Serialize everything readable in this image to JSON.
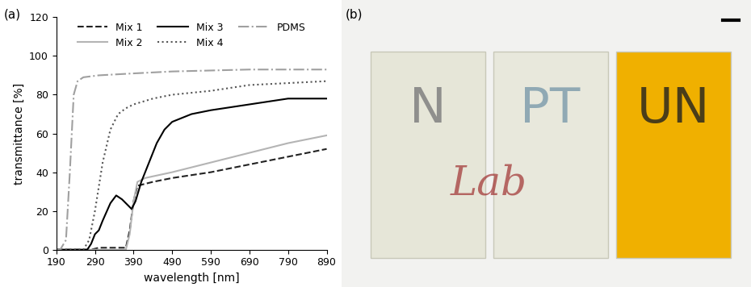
{
  "chart_data": {
    "type": "line",
    "panel_label": "(a)",
    "x_label": "wavelength [nm]",
    "y_label": "transmittance [%]",
    "xlim": [
      190,
      890
    ],
    "xticks": [
      190,
      290,
      390,
      490,
      590,
      690,
      790,
      890
    ],
    "ylim": [
      0,
      120
    ],
    "yticks": [
      0,
      20,
      40,
      60,
      80,
      100,
      120
    ],
    "legend": "upper center",
    "series": [
      {
        "name": "Mix 1",
        "color": "#222222",
        "line_style": "dashed",
        "x": [
          190,
          280,
          300,
          340,
          370,
          380,
          390,
          400,
          440,
          490,
          590,
          690,
          790,
          890
        ],
        "values": [
          0,
          0,
          1,
          1,
          1,
          10,
          25,
          33,
          35,
          37,
          40,
          44,
          48,
          52
        ]
      },
      {
        "name": "Mix 2",
        "color": "#b4b4b4",
        "line_style": "solid",
        "x": [
          190,
          370,
          380,
          390,
          400,
          420,
          490,
          590,
          690,
          790,
          890
        ],
        "values": [
          0,
          0,
          8,
          25,
          35,
          37,
          40,
          45,
          50,
          55,
          59
        ]
      },
      {
        "name": "Mix 3",
        "color": "#000000",
        "line_style": "solid",
        "x": [
          190,
          270,
          280,
          290,
          300,
          310,
          330,
          345,
          360,
          375,
          385,
          395,
          410,
          430,
          450,
          470,
          490,
          540,
          590,
          690,
          790,
          890
        ],
        "values": [
          0,
          0,
          3,
          8,
          10,
          15,
          24,
          28,
          26,
          23,
          21,
          25,
          35,
          45,
          55,
          62,
          66,
          70,
          72,
          75,
          78,
          78
        ]
      },
      {
        "name": "Mix 4",
        "color": "#555555",
        "line_style": "dotted",
        "x": [
          190,
          260,
          275,
          290,
          310,
          330,
          350,
          370,
          390,
          440,
          490,
          590,
          690,
          790,
          890
        ],
        "values": [
          0,
          0,
          5,
          20,
          45,
          62,
          70,
          73,
          75,
          78,
          80,
          82,
          85,
          86,
          87
        ]
      },
      {
        "name": "PDMS",
        "color": "#a0a0a0",
        "line_style": "dashdot",
        "x": [
          190,
          200,
          215,
          225,
          235,
          245,
          260,
          300,
          390,
          490,
          590,
          690,
          790,
          890
        ],
        "values": [
          0,
          0,
          5,
          40,
          80,
          87,
          89,
          90,
          91,
          92,
          92.5,
          93,
          93,
          93
        ]
      }
    ]
  },
  "panel_b": {
    "label": "(b)",
    "texts": [
      "N",
      "PT",
      "UN"
    ],
    "handwriting": "Lab"
  }
}
